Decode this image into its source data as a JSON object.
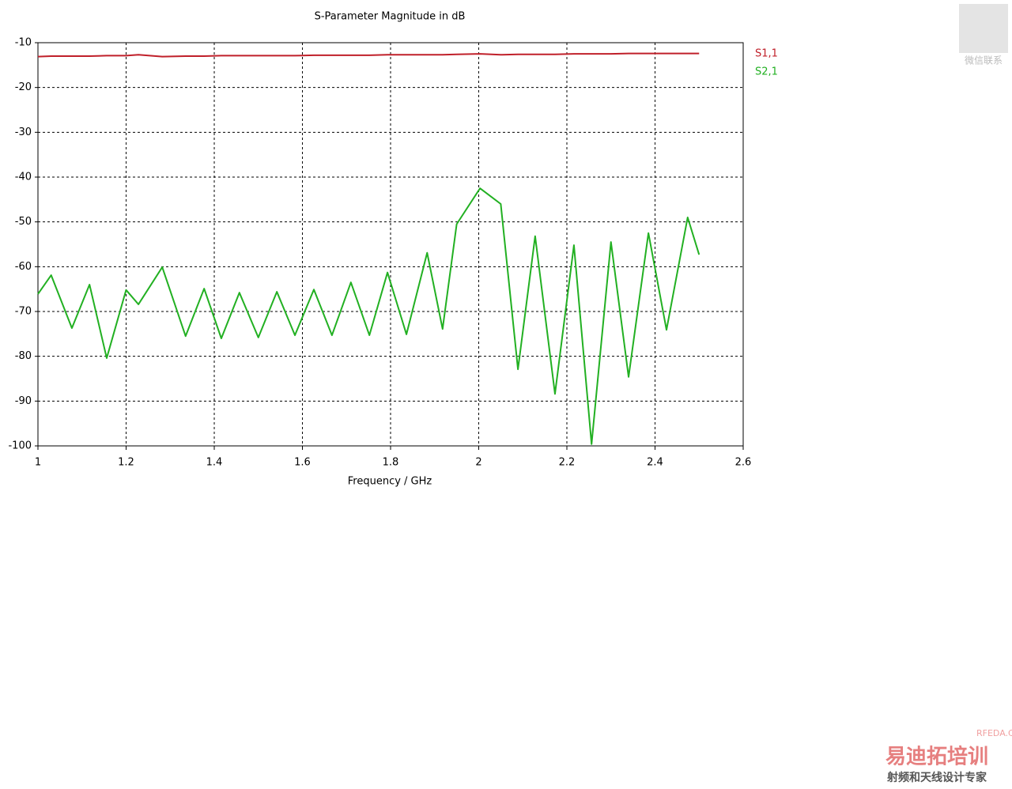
{
  "chart_data": {
    "type": "line",
    "title": "S-Parameter Magnitude in dB",
    "x_label": "Frequency / GHz",
    "x": [
      1.0,
      1.03,
      1.077,
      1.117,
      1.156,
      1.2,
      1.228,
      1.282,
      1.335,
      1.377,
      1.416,
      1.457,
      1.5,
      1.542,
      1.583,
      1.626,
      1.667,
      1.71,
      1.752,
      1.793,
      1.836,
      1.883,
      1.918,
      1.95,
      2.003,
      2.05,
      2.089,
      2.128,
      2.173,
      2.216,
      2.256,
      2.3,
      2.34,
      2.385,
      2.426,
      2.474,
      2.5
    ],
    "series": [
      {
        "name": "S1,1",
        "color": "#c0202a",
        "values": [
          -13.1,
          -13.0,
          -13.0,
          -13.0,
          -12.9,
          -12.9,
          -12.7,
          -13.1,
          -13.0,
          -13.0,
          -12.9,
          -12.9,
          -12.9,
          -12.9,
          -12.9,
          -12.8,
          -12.8,
          -12.8,
          -12.8,
          -12.7,
          -12.7,
          -12.7,
          -12.7,
          -12.6,
          -12.5,
          -12.7,
          -12.6,
          -12.6,
          -12.6,
          -12.5,
          -12.5,
          -12.5,
          -12.4,
          -12.4,
          -12.4,
          -12.4,
          -12.4
        ]
      },
      {
        "name": "S2,1",
        "color": "#22b022",
        "values": [
          -66.1,
          -61.9,
          -73.7,
          -64,
          -80.4,
          -65.2,
          -68.4,
          -60.1,
          -75.5,
          -64.9,
          -76,
          -65.8,
          -75.8,
          -65.6,
          -75.3,
          -65.1,
          -75.3,
          -63.5,
          -75.3,
          -61.3,
          -75.1,
          -56.9,
          -73.9,
          -50.5,
          -42.5,
          -46,
          -82.9,
          -53.2,
          -88.4,
          -55.2,
          -99.6,
          -54.5,
          -84.6,
          -52.5,
          -74.1,
          -49,
          -57.3
        ]
      }
    ],
    "xlim": [
      1,
      2.6
    ],
    "xticks": [
      1,
      1.2,
      1.4,
      1.6,
      1.8,
      2,
      2.2,
      2.4,
      2.6
    ],
    "ylim": [
      -100,
      -10
    ],
    "yticks": [
      -10,
      -20,
      -30,
      -40,
      -50,
      -60,
      -70,
      -80,
      -90,
      -100
    ],
    "grid": true,
    "legend": "right"
  },
  "watermark": {
    "qr_caption": "微信联系",
    "site": "RFEDA.CN",
    "brand": "易迪拓培训",
    "slogan": "射频和天线设计专家"
  }
}
